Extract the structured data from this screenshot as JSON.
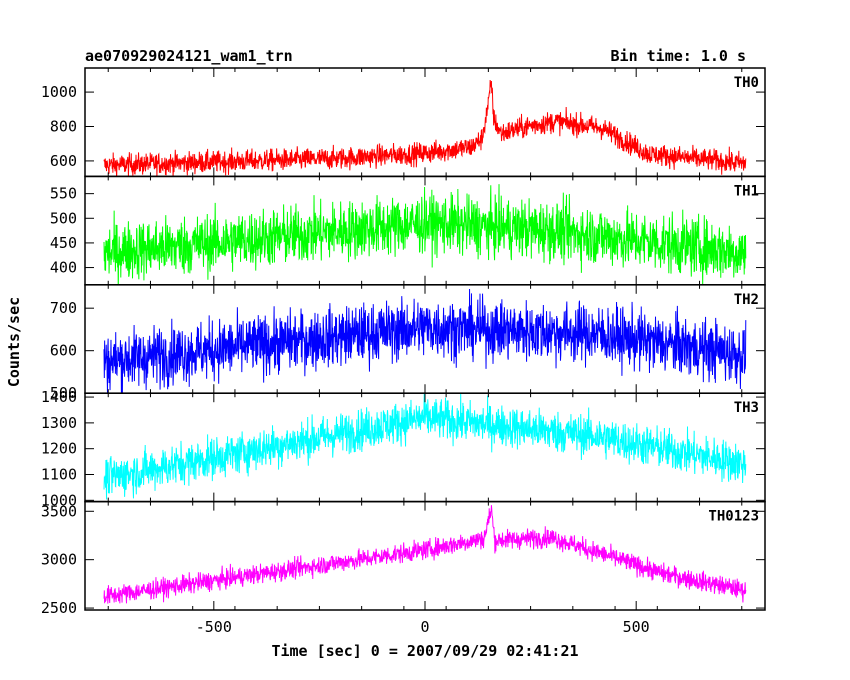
{
  "chart_data": {
    "type": "line",
    "title": "ae070929024121_wam1_trn",
    "bin_time": "Bin time: 1.0 s",
    "xlabel": "Time [sec] 0 = 2007/09/29 02:41:21",
    "ylabel": "Counts/sec",
    "xlim": [
      -805,
      805
    ],
    "x_range": [
      -760,
      760
    ],
    "x_ticks": [
      -500,
      0,
      500
    ],
    "grid": false,
    "legend": "none",
    "panels": [
      {
        "name": "TH0",
        "color": "#ff0000",
        "ylim": [
          510,
          1140
        ],
        "y_ticks": [
          600,
          800,
          1000
        ],
        "profile": [
          [
            -760,
            575
          ],
          [
            -200,
            615
          ],
          [
            0,
            645
          ],
          [
            110,
            680
          ],
          [
            135,
            730
          ],
          [
            150,
            930
          ],
          [
            157,
            1060
          ],
          [
            163,
            840
          ],
          [
            180,
            760
          ],
          [
            250,
            805
          ],
          [
            310,
            830
          ],
          [
            420,
            790
          ],
          [
            530,
            640
          ],
          [
            760,
            585
          ]
        ],
        "noise": 32
      },
      {
        "name": "TH1",
        "color": "#00ff00",
        "ylim": [
          365,
          585
        ],
        "y_ticks": [
          400,
          450,
          500,
          550
        ],
        "profile": [
          [
            -760,
            430
          ],
          [
            0,
            490
          ],
          [
            300,
            475
          ],
          [
            760,
            430
          ]
        ],
        "noise": 30
      },
      {
        "name": "TH2",
        "color": "#0000ff",
        "ylim": [
          500,
          755
        ],
        "y_ticks": [
          500,
          600,
          700
        ],
        "profile": [
          [
            -760,
            575
          ],
          [
            0,
            655
          ],
          [
            400,
            640
          ],
          [
            760,
            590
          ]
        ],
        "noise": 35
      },
      {
        "name": "TH3",
        "color": "#00ffff",
        "ylim": [
          995,
          1415
        ],
        "y_ticks": [
          1000,
          1100,
          1200,
          1300,
          1400
        ],
        "profile": [
          [
            -760,
            1085
          ],
          [
            0,
            1320
          ],
          [
            400,
            1250
          ],
          [
            760,
            1140
          ]
        ],
        "noise": 40
      },
      {
        "name": "TH0123",
        "color": "#ff00ff",
        "ylim": [
          2480,
          3600
        ],
        "y_ticks": [
          2500,
          3000,
          3500
        ],
        "profile": [
          [
            -760,
            2620
          ],
          [
            0,
            3100
          ],
          [
            140,
            3220
          ],
          [
            150,
            3400
          ],
          [
            157,
            3530
          ],
          [
            165,
            3200
          ],
          [
            300,
            3230
          ],
          [
            420,
            3060
          ],
          [
            560,
            2860
          ],
          [
            760,
            2680
          ]
        ],
        "noise": 50
      }
    ]
  }
}
